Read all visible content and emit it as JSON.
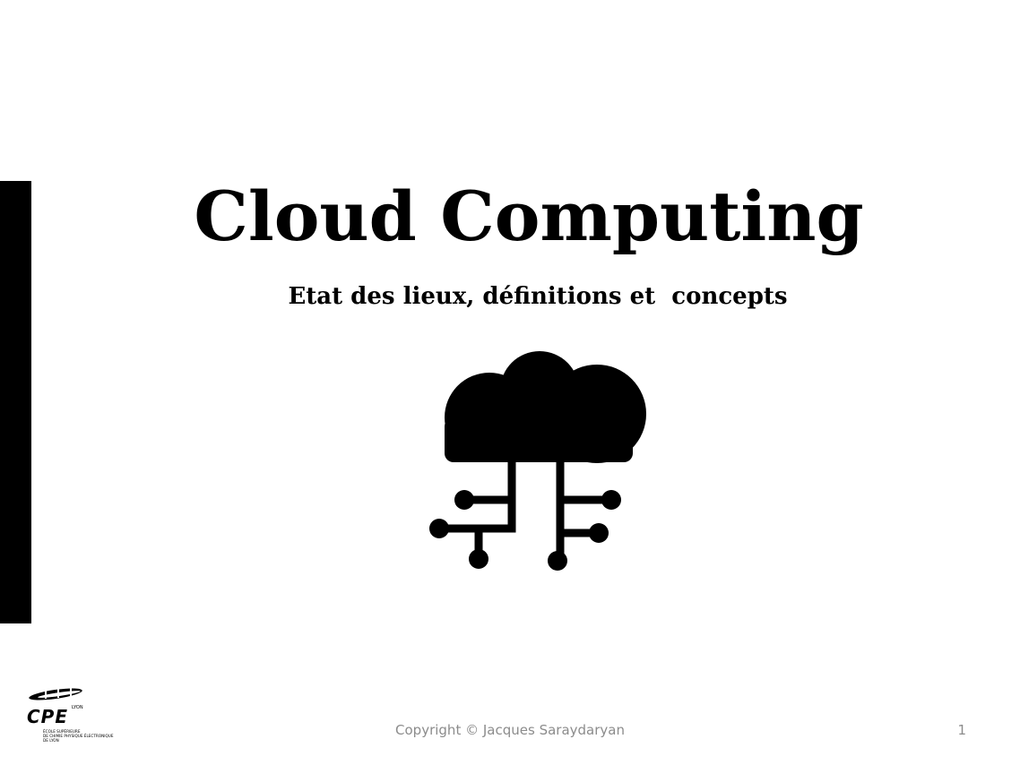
{
  "slide": {
    "title": "Cloud Computing",
    "subtitle": "Etat des lieux, définitions et  concepts",
    "icon": "cloud-network-icon",
    "footer": {
      "copyright": "Copyright © Jacques Saraydaryan",
      "page_number": "1"
    },
    "logo": {
      "name": "CPE",
      "city": "LYON",
      "lines": [
        "ÉCOLE SUPÉRIEURE",
        "DE CHIMIE PHYSIQUE ÉLECTRONIQUE",
        "DE LYON"
      ]
    },
    "colors": {
      "accent_bar": "#000000",
      "footer_text": "#8c8c8c",
      "background": "#ffffff"
    }
  }
}
